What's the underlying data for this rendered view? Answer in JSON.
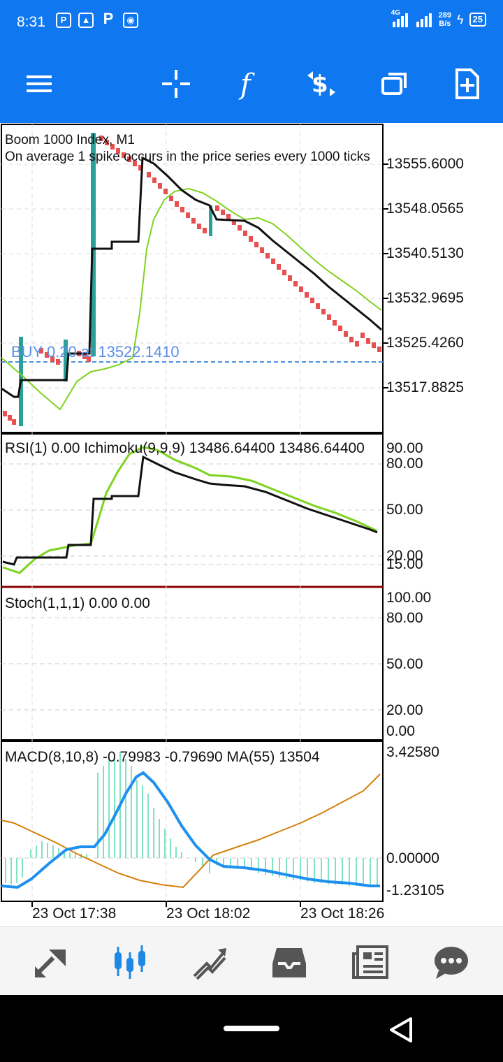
{
  "status_bar": {
    "time": "8:31",
    "network_type": "4G",
    "speed_value": "289",
    "speed_unit": "B/s",
    "battery": "25"
  },
  "toolbar": {
    "icons": [
      "menu-icon",
      "crosshair-icon",
      "indicators-icon",
      "trade-icon",
      "windows-icon",
      "new-order-icon"
    ]
  },
  "main_chart": {
    "title": "Boom 1000 Index, M1",
    "description": "On average 1 spike occurs in the price series every 1000 ticks",
    "buy_line_label": "BUY 0.20 at 13522.1410",
    "price_labels": [
      "13555.6000",
      "13548.0565",
      "13540.5130",
      "13532.9695",
      "13525.4260",
      "13517.8825"
    ]
  },
  "rsi_panel": {
    "label": "RSI(1) 0.00 Ichimoku(9,9,9) 13486.64400 13486.64400",
    "levels": [
      "90.00",
      "80.00",
      "50.00",
      "20.00",
      "15.00"
    ]
  },
  "stoch_panel": {
    "label": "Stoch(1,1,1) 0.00 0.00",
    "levels": [
      "100.00",
      "80.00",
      "50.00",
      "20.00",
      "0.00"
    ]
  },
  "macd_panel": {
    "label": "MACD(8,10,8) -0.79983 -0.79690 MA(55) 13504",
    "levels": [
      "3.42580",
      "0.00000",
      "-1.23105"
    ]
  },
  "time_axis": [
    "23 Oct 17:38",
    "23 Oct 18:02",
    "23 Oct 18:26"
  ],
  "colors": {
    "accent": "#0f77f0",
    "bear_candle": "#e85050",
    "bull_candle": "#2aa198",
    "ma_green": "#7ed321",
    "line_black": "#111111",
    "macd_blue": "#1e90f0",
    "macd_signal": "#d4800a",
    "histogram": "#7fe3c0",
    "buy_line": "#4a90e2"
  },
  "bottom_nav": {
    "items": [
      "quotes-icon",
      "chart-icon",
      "trade-icon",
      "history-icon",
      "news-icon",
      "messages-icon"
    ],
    "active": "chart-icon"
  }
}
